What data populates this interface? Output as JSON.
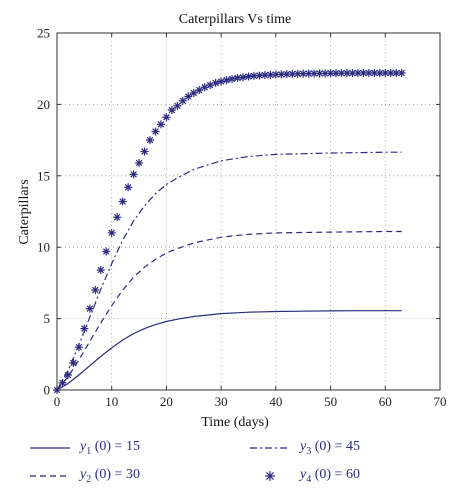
{
  "chart_data": {
    "type": "line",
    "title": "Caterpillars Vs time",
    "xlabel": "Time (days)",
    "ylabel": "Caterpillars",
    "xlim": [
      0,
      70
    ],
    "ylim": [
      0,
      25
    ],
    "xticks": [
      0,
      10,
      20,
      30,
      40,
      50,
      60,
      70
    ],
    "yticks": [
      0,
      5,
      10,
      15,
      20,
      25
    ],
    "grid": true,
    "color": "#2b2b80",
    "legend_position": "bottom",
    "series": [
      {
        "name": "y1 (0) = 15",
        "var": "y",
        "sub": "1",
        "rest": " (0) = 15",
        "style": "solid",
        "x": [
          0,
          2,
          4,
          6,
          8,
          10,
          12,
          14,
          16,
          18,
          20,
          22,
          25,
          30,
          35,
          40,
          45,
          50,
          55,
          60,
          63
        ],
        "y": [
          0,
          0.45,
          1.05,
          1.7,
          2.35,
          2.95,
          3.5,
          3.95,
          4.3,
          4.58,
          4.8,
          4.96,
          5.15,
          5.35,
          5.45,
          5.5,
          5.52,
          5.54,
          5.55,
          5.55,
          5.55
        ]
      },
      {
        "name": "y2 (0) = 30",
        "var": "y",
        "sub": "2",
        "rest": " (0) = 30",
        "style": "dashed",
        "x": [
          0,
          2,
          4,
          6,
          8,
          10,
          12,
          14,
          16,
          18,
          20,
          22,
          25,
          30,
          35,
          40,
          45,
          50,
          55,
          60,
          63
        ],
        "y": [
          0,
          0.9,
          2.1,
          3.4,
          4.7,
          5.9,
          7.0,
          7.9,
          8.6,
          9.15,
          9.6,
          9.9,
          10.3,
          10.7,
          10.9,
          11.0,
          11.03,
          11.06,
          11.08,
          11.1,
          11.1
        ]
      },
      {
        "name": "y3 (0) = 45",
        "var": "y",
        "sub": "3",
        "rest": " (0) = 45",
        "style": "dashdot",
        "x": [
          0,
          2,
          4,
          6,
          8,
          10,
          12,
          14,
          16,
          18,
          20,
          22,
          25,
          30,
          35,
          40,
          45,
          50,
          55,
          60,
          63
        ],
        "y": [
          0,
          1.35,
          3.15,
          5.1,
          7.05,
          8.85,
          10.5,
          11.85,
          12.9,
          13.75,
          14.4,
          14.85,
          15.45,
          16.05,
          16.35,
          16.5,
          16.55,
          16.6,
          16.62,
          16.65,
          16.65
        ]
      },
      {
        "name": "y4 (0) = 60",
        "var": "y",
        "sub": "4",
        "rest": " (0) = 60",
        "style": "markers",
        "x": [
          0,
          1,
          2,
          3,
          4,
          5,
          6,
          7,
          8,
          9,
          10,
          11,
          12,
          13,
          14,
          15,
          16,
          17,
          18,
          19,
          20,
          21,
          22,
          23,
          24,
          25,
          26,
          27,
          28,
          29,
          30,
          31,
          32,
          33,
          34,
          35,
          36,
          37,
          38,
          39,
          40,
          41,
          42,
          43,
          44,
          45,
          46,
          47,
          48,
          49,
          50,
          51,
          52,
          53,
          54,
          55,
          56,
          57,
          58,
          59,
          60,
          61,
          62,
          63
        ],
        "y": [
          0,
          0.5,
          1.05,
          1.9,
          3.0,
          4.3,
          5.7,
          7.0,
          8.4,
          9.7,
          11.0,
          12.1,
          13.2,
          14.2,
          15.1,
          15.9,
          16.7,
          17.5,
          18.1,
          18.6,
          19.1,
          19.6,
          19.9,
          20.25,
          20.55,
          20.8,
          21.0,
          21.2,
          21.35,
          21.5,
          21.6,
          21.7,
          21.78,
          21.85,
          21.9,
          21.95,
          22.0,
          22.02,
          22.05,
          22.07,
          22.09,
          22.1,
          22.12,
          22.13,
          22.14,
          22.15,
          22.16,
          22.16,
          22.17,
          22.17,
          22.18,
          22.18,
          22.19,
          22.19,
          22.19,
          22.2,
          22.2,
          22.2,
          22.2,
          22.2,
          22.2,
          22.2,
          22.2,
          22.2
        ]
      }
    ]
  }
}
